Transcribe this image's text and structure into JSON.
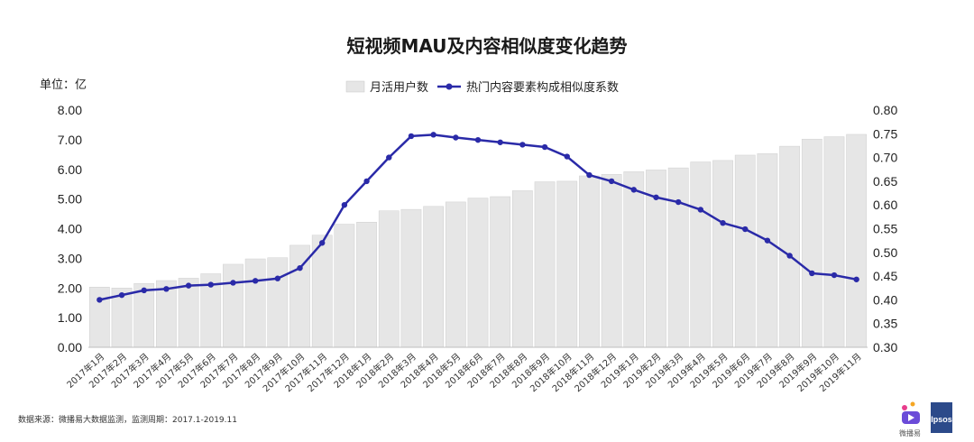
{
  "chart_data": {
    "type": "bar+line",
    "title": "短视频MAU及内容相似度变化趋势",
    "unit_label": "单位：亿",
    "legend_position": "top-center",
    "grid": false,
    "categories": [
      "2017年1月",
      "2017年2月",
      "2017年3月",
      "2017年4月",
      "2017年5月",
      "2017年6月",
      "2017年7月",
      "2017年8月",
      "2017年9月",
      "2017年10月",
      "2017年11月",
      "2017年12月",
      "2018年1月",
      "2018年2月",
      "2018年3月",
      "2018年4月",
      "2018年5月",
      "2018年6月",
      "2018年7月",
      "2018年8月",
      "2018年9月",
      "2018年10月",
      "2018年11月",
      "2018年12月",
      "2019年1月",
      "2019年2月",
      "2019年3月",
      "2019年4月",
      "2019年5月",
      "2019年6月",
      "2019年7月",
      "2019年8月",
      "2019年9月",
      "2019年10月",
      "2019年11月"
    ],
    "series": [
      {
        "name": "月活用户数",
        "type": "bar",
        "axis": "left",
        "color": "#e6e6e6",
        "values": [
          2.03,
          2.0,
          2.15,
          2.25,
          2.33,
          2.48,
          2.8,
          2.98,
          3.02,
          3.44,
          3.78,
          4.15,
          4.22,
          4.6,
          4.65,
          4.75,
          4.9,
          5.03,
          5.08,
          5.28,
          5.58,
          5.6,
          5.78,
          5.83,
          5.92,
          5.98,
          6.05,
          6.25,
          6.3,
          6.48,
          6.53,
          6.78,
          7.02,
          7.1,
          7.18
        ]
      },
      {
        "name": "热门内容要素构成相似度系数",
        "type": "line",
        "axis": "right",
        "color": "#2a2aa8",
        "values": [
          0.4,
          0.41,
          0.42,
          0.423,
          0.43,
          0.432,
          0.436,
          0.44,
          0.445,
          0.467,
          0.52,
          0.6,
          0.65,
          0.7,
          0.745,
          0.748,
          0.742,
          0.737,
          0.732,
          0.727,
          0.722,
          0.702,
          0.663,
          0.65,
          0.632,
          0.616,
          0.606,
          0.59,
          0.562,
          0.549,
          0.525,
          0.493,
          0.456,
          0.452,
          0.443
        ]
      }
    ],
    "y_left": {
      "min": 0,
      "max": 8,
      "step": 1,
      "ticks": [
        "0.00",
        "1.00",
        "2.00",
        "3.00",
        "4.00",
        "5.00",
        "6.00",
        "7.00",
        "8.00"
      ]
    },
    "y_right": {
      "min": 0.3,
      "max": 0.8,
      "step": 0.05,
      "ticks": [
        "0.30",
        "0.35",
        "0.40",
        "0.45",
        "0.50",
        "0.55",
        "0.60",
        "0.65",
        "0.70",
        "0.75",
        "0.80"
      ]
    }
  },
  "footer": {
    "source": "数据来源：微播易大数据监测，监测周期：2017.1-2019.11"
  },
  "logos": {
    "weiboyi": "微播易",
    "ipsos": "Ipsos"
  }
}
